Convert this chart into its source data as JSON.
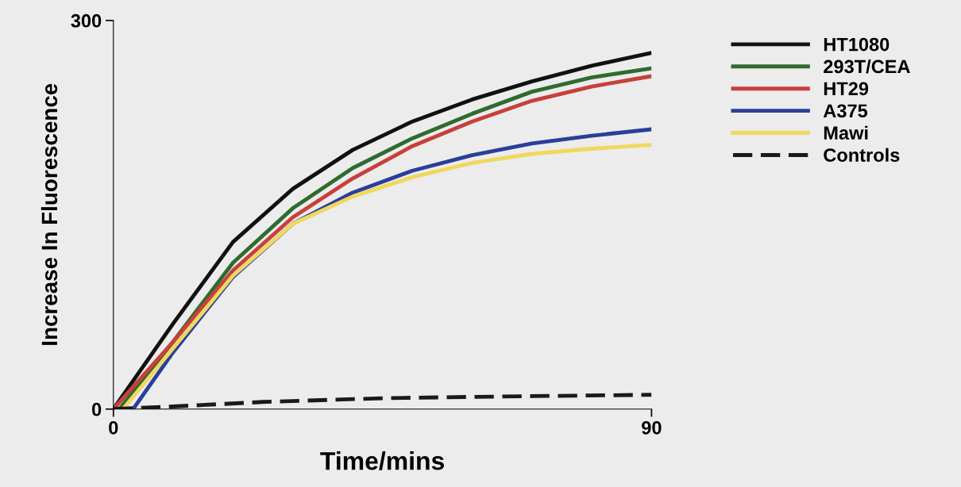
{
  "chart_data": {
    "type": "line",
    "xlabel": "Time/mins",
    "ylabel": "Increase In Fluorescence",
    "xlim": [
      0,
      90
    ],
    "ylim": [
      0,
      300
    ],
    "xticks": [
      0,
      90
    ],
    "yticks": [
      0,
      300
    ],
    "grid": false,
    "legend": "top right",
    "marker": "none",
    "series": [
      {
        "name": "HT1080",
        "color": "#111111",
        "x": [
          0,
          10,
          20,
          30,
          40,
          50,
          60,
          70,
          80,
          90
        ],
        "values": [
          0,
          66,
          129,
          170,
          200,
          222,
          239,
          253,
          265,
          275
        ]
      },
      {
        "name": "293T/CEA",
        "color": "#2e6b30",
        "x": [
          1,
          10,
          20,
          30,
          40,
          50,
          60,
          70,
          80,
          90
        ],
        "values": [
          0,
          52,
          113,
          155,
          186,
          209,
          228,
          245,
          256,
          263
        ]
      },
      {
        "name": "HT29",
        "color": "#c8403a",
        "x": [
          0,
          10,
          20,
          30,
          40,
          50,
          60,
          70,
          80,
          90
        ],
        "values": [
          0,
          52,
          107,
          148,
          178,
          203,
          222,
          238,
          249,
          257
        ]
      },
      {
        "name": "A375",
        "color": "#2a3f9a",
        "x": [
          3.3,
          10,
          20,
          30,
          40,
          50,
          60,
          70,
          80,
          90
        ],
        "values": [
          0,
          44,
          102,
          143,
          167,
          184,
          196,
          205,
          211,
          216
        ]
      },
      {
        "name": "Mawi",
        "color": "#f0d860",
        "x": [
          1.6,
          10,
          20,
          30,
          40,
          50,
          60,
          70,
          80,
          90
        ],
        "values": [
          0,
          47,
          103,
          143,
          164,
          179,
          190,
          197,
          201,
          204
        ]
      },
      {
        "name": "Controls",
        "color": "#1a1a1a",
        "line_style": "dashed",
        "x": [
          0,
          10,
          25,
          46,
          70,
          90
        ],
        "values": [
          0,
          2,
          5.5,
          8.5,
          10,
          11
        ]
      }
    ]
  }
}
